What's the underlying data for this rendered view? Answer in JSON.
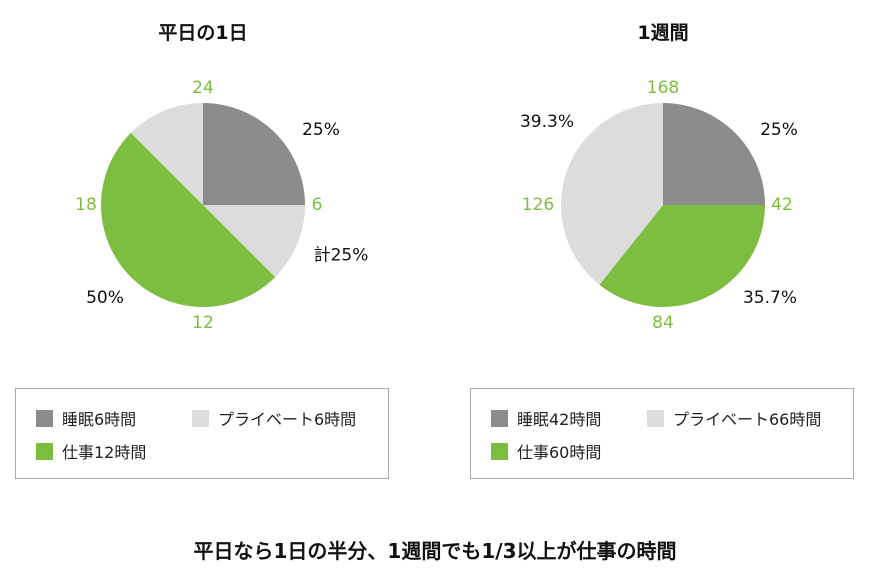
{
  "colors": {
    "sleep": "#8c8c8c",
    "private": "#dcdcdc",
    "work": "#7dbd3f"
  },
  "chart_data": [
    {
      "type": "pie",
      "title": "平日の1日",
      "slices": [
        {
          "category": "sleep",
          "value": 6
        },
        {
          "category": "private",
          "value": 3
        },
        {
          "category": "work",
          "value": 12
        },
        {
          "category": "private",
          "value": 3
        }
      ],
      "start": "12 o'clock",
      "direction": "clockwise",
      "tick_labels": [
        "24",
        "6",
        "12",
        "18"
      ],
      "percent_labels": [
        "25%",
        "計25%",
        "50%"
      ],
      "legend": [
        "睡眠6時間",
        "プライベート6時間",
        "仕事12時間"
      ]
    },
    {
      "type": "pie",
      "title": "1週間",
      "slices": [
        {
          "category": "sleep",
          "value": 42
        },
        {
          "category": "work",
          "value": 60
        },
        {
          "category": "private",
          "value": 66
        }
      ],
      "start": "12 o'clock",
      "direction": "clockwise",
      "tick_labels": [
        "168",
        "42",
        "84",
        "126"
      ],
      "percent_labels": [
        "25%",
        "35.7%",
        "39.3%"
      ],
      "legend": [
        "睡眠42時間",
        "プライベート66時間",
        "仕事60時間"
      ]
    }
  ],
  "footer": "平日なら1日の半分、1週間でも1/3以上が仕事の時間"
}
